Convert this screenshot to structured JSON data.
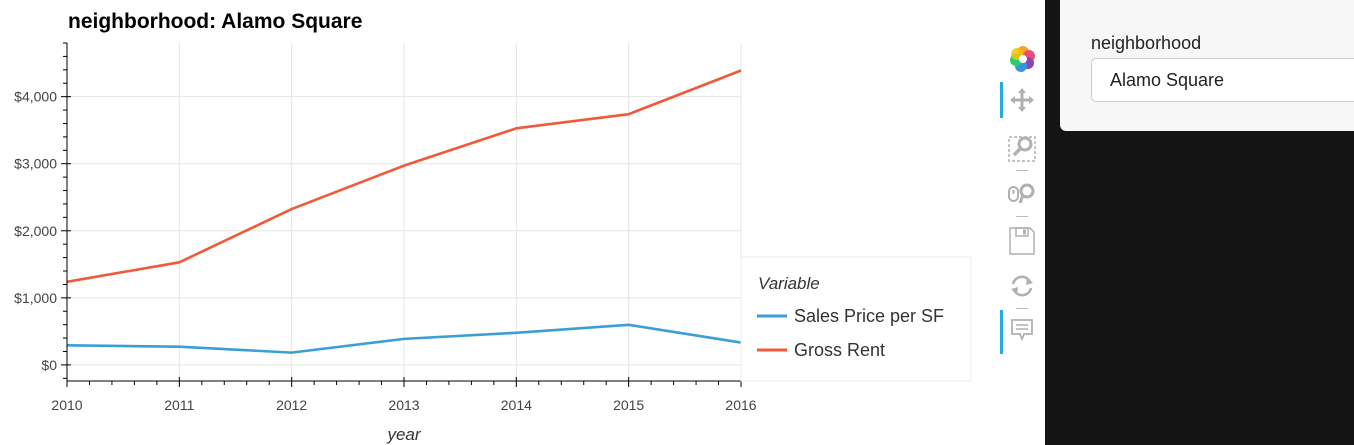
{
  "chart_data": {
    "type": "line",
    "title": "neighborhood: Alamo Square",
    "xlabel": "year",
    "ylabel": "",
    "x": [
      2010,
      2011,
      2012,
      2013,
      2014,
      2015,
      2016
    ],
    "xlim": [
      2010,
      2016
    ],
    "ylim": [
      -240,
      4800
    ],
    "yticks": [
      0,
      1000,
      2000,
      3000,
      4000
    ],
    "ytick_labels": [
      "$0",
      "$1,000",
      "$2,000",
      "$3,000",
      "$4,000"
    ],
    "xtick_labels": [
      "2010",
      "2011",
      "2012",
      "2013",
      "2014",
      "2015",
      "2016"
    ],
    "grid": true,
    "legend": {
      "title": "Variable",
      "placement": "right"
    },
    "series": [
      {
        "name": "Sales Price per SF",
        "color": "#3a9fd6",
        "values": [
          292,
          272,
          183,
          388,
          479,
          598,
          333
        ]
      },
      {
        "name": "Gross Rent",
        "color": "#f05a3a",
        "values": [
          1239,
          1530,
          2324,
          2971,
          3528,
          3739,
          4390
        ]
      }
    ]
  },
  "toolbar": {
    "tools": [
      {
        "icon": "bokeh-logo-icon",
        "active": false
      },
      {
        "icon": "pan-icon",
        "active": true
      },
      {
        "icon": "box-zoom-icon",
        "active": false
      },
      {
        "icon": "wheel-zoom-icon",
        "active": false
      },
      {
        "icon": "save-icon",
        "active": false
      },
      {
        "icon": "reset-icon",
        "active": false
      },
      {
        "icon": "hover-icon",
        "active": true
      }
    ]
  },
  "widget": {
    "label": "neighborhood",
    "selected": "Alamo Square"
  }
}
